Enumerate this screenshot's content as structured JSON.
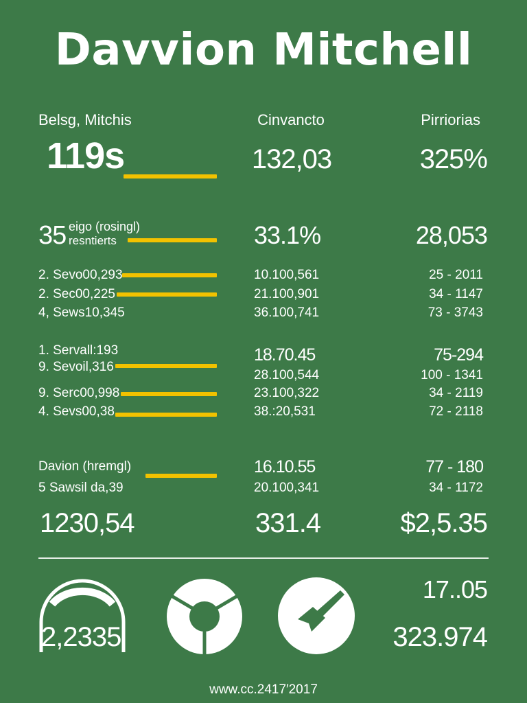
{
  "title": "Davvion Mitchell",
  "headers": {
    "col1": "Belsg, Mitchis",
    "col2": "Cinvancto",
    "col3": "Pirriorias"
  },
  "row_top": {
    "c1": "119s",
    "c2": "132,03",
    "c3": "325%"
  },
  "row_second": {
    "c1_prefix": "35",
    "c1_label_line1": "eigo (rosingl)",
    "c1_label_line2": "resntierts",
    "c2": "33.1%",
    "c3": "28,053"
  },
  "group1": [
    {
      "label": "2. Sevo00,293",
      "mid": "10.100,561",
      "right": "25 - 2011"
    },
    {
      "label": "2. Sec00,225",
      "mid": "21.100,901",
      "right": "34 - 1147"
    },
    {
      "label": "4, Sews10,345",
      "mid": "36.100,741",
      "right": "73 - 3743"
    }
  ],
  "group2": [
    {
      "label": "1. Servall:193",
      "mid": "18.70.45",
      "right": "75-294"
    },
    {
      "label": "9. Sevoil,316",
      "mid": "28.100,544",
      "right": "100 - 1341"
    },
    {
      "label": "9. Serc00,998",
      "mid": "23.100,322",
      "right": "34 - 2119"
    },
    {
      "label": "4. Sevs00,38",
      "mid": "38.:20,531",
      "right": "72 - 2118"
    }
  ],
  "group3": [
    {
      "label": "Davion (hremgl)",
      "mid": "16.10.55",
      "right": "77 - 180"
    },
    {
      "label": "5 Sawsil da,39",
      "mid": "20.100,341",
      "right": "34 - 1172"
    }
  ],
  "totals": {
    "c1": "1230,54",
    "c2": "331.4",
    "c3": "$2,5.35"
  },
  "bottom": {
    "left_value": "2,2335",
    "right_top": "17..05",
    "right_bottom": "323.974"
  },
  "footer": "www.cc.2417′2017",
  "colors": {
    "background": "#3d7a48",
    "accent": "#f2c200",
    "text": "#ffffff"
  },
  "icons": [
    "arch-icon",
    "ring-segment-icon",
    "pen-nib-icon"
  ]
}
